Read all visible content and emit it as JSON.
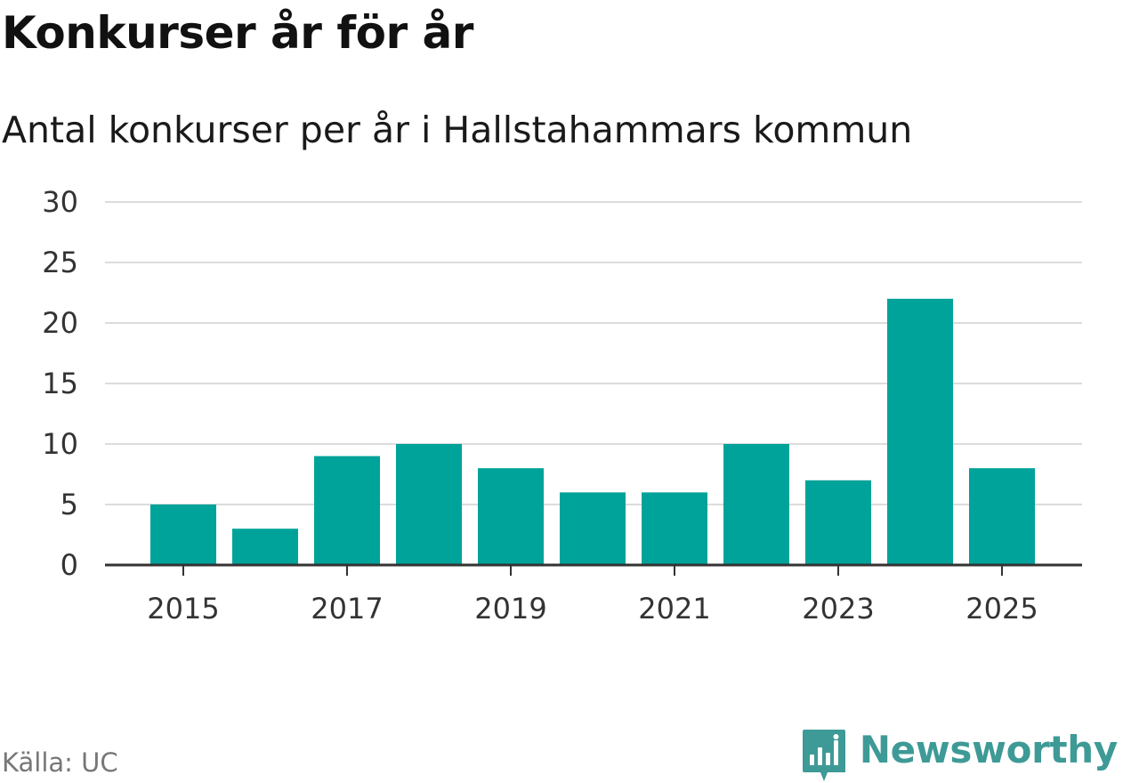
{
  "header": {
    "title": "Konkurser år för år",
    "subtitle": "Antal konkurser per år i Hallstahammars kommun"
  },
  "chart_data": {
    "type": "bar",
    "title": "Konkurser år för år",
    "subtitle": "Antal konkurser per år i Hallstahammars kommun",
    "categories": [
      "2015",
      "2016",
      "2017",
      "2018",
      "2019",
      "2020",
      "2021",
      "2022",
      "2023",
      "2024",
      "2025"
    ],
    "values": [
      5,
      3,
      9,
      10,
      8,
      6,
      6,
      10,
      7,
      22,
      8
    ],
    "x_tick_labels": [
      "2015",
      "2017",
      "2019",
      "2021",
      "2023",
      "2025"
    ],
    "y_ticks": [
      0,
      5,
      10,
      15,
      20,
      25,
      30
    ],
    "ylim": [
      0,
      30
    ],
    "xlabel": "",
    "ylabel": "",
    "grid": true,
    "bar_color": "#00a39a"
  },
  "footer": {
    "source": "Källa: UC",
    "brand": "Newsworthy",
    "brand_icon": "newsworthy-logo-icon",
    "brand_color": "#3e9a96"
  }
}
